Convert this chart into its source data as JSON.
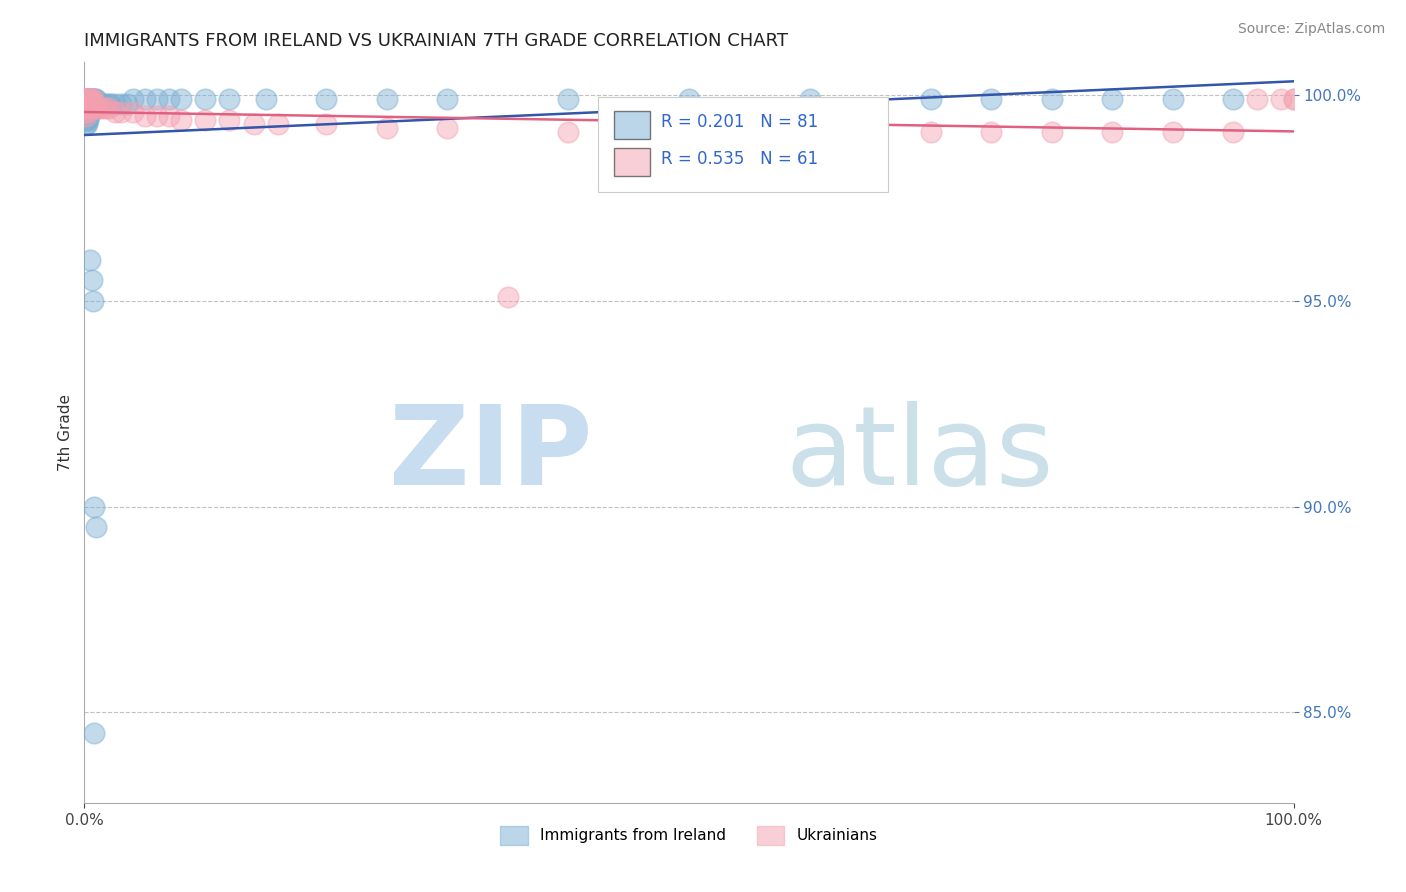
{
  "title": "IMMIGRANTS FROM IRELAND VS UKRAINIAN 7TH GRADE CORRELATION CHART",
  "source": "Source: ZipAtlas.com",
  "ylabel": "7th Grade",
  "xlim": [
    0.0,
    1.0
  ],
  "ylim": [
    0.828,
    1.008
  ],
  "yticks": [
    0.85,
    0.9,
    0.95,
    1.0
  ],
  "ytick_labels": [
    "85.0%",
    "90.0%",
    "95.0%",
    "100.0%"
  ],
  "blue_R": 0.201,
  "blue_N": 81,
  "pink_R": 0.535,
  "pink_N": 61,
  "blue_color": "#7BAFD4",
  "pink_color": "#F4A0B0",
  "blue_line_color": "#3355AA",
  "pink_line_color": "#E06080",
  "legend_label_blue": "Immigrants from Ireland",
  "legend_label_pink": "Ukrainians",
  "blue_x": [
    0.001,
    0.001,
    0.001,
    0.001,
    0.001,
    0.001,
    0.001,
    0.001,
    0.001,
    0.001,
    0.002,
    0.002,
    0.002,
    0.002,
    0.002,
    0.002,
    0.002,
    0.002,
    0.003,
    0.003,
    0.003,
    0.003,
    0.003,
    0.003,
    0.004,
    0.004,
    0.004,
    0.004,
    0.004,
    0.005,
    0.005,
    0.005,
    0.005,
    0.006,
    0.006,
    0.006,
    0.007,
    0.007,
    0.007,
    0.008,
    0.008,
    0.009,
    0.009,
    0.01,
    0.01,
    0.012,
    0.013,
    0.015,
    0.016,
    0.018,
    0.02,
    0.022,
    0.025,
    0.03,
    0.035,
    0.04,
    0.05,
    0.06,
    0.07,
    0.08,
    0.1,
    0.12,
    0.15,
    0.2,
    0.25,
    0.3,
    0.4,
    0.5,
    0.6,
    0.7,
    0.75,
    0.8,
    0.85,
    0.9,
    0.95,
    0.008,
    0.01,
    0.005,
    0.006,
    0.007,
    0.008
  ],
  "blue_y": [
    0.999,
    0.998,
    0.997,
    0.997,
    0.996,
    0.996,
    0.995,
    0.995,
    0.994,
    0.993,
    0.999,
    0.998,
    0.998,
    0.997,
    0.996,
    0.995,
    0.994,
    0.993,
    0.999,
    0.998,
    0.997,
    0.996,
    0.995,
    0.994,
    0.999,
    0.998,
    0.997,
    0.996,
    0.995,
    0.999,
    0.998,
    0.997,
    0.996,
    0.999,
    0.998,
    0.997,
    0.999,
    0.998,
    0.997,
    0.999,
    0.998,
    0.999,
    0.997,
    0.999,
    0.998,
    0.998,
    0.998,
    0.998,
    0.998,
    0.998,
    0.998,
    0.998,
    0.998,
    0.998,
    0.998,
    0.999,
    0.999,
    0.999,
    0.999,
    0.999,
    0.999,
    0.999,
    0.999,
    0.999,
    0.999,
    0.999,
    0.999,
    0.999,
    0.999,
    0.999,
    0.999,
    0.999,
    0.999,
    0.999,
    0.999,
    0.9,
    0.895,
    0.96,
    0.955,
    0.95,
    0.845
  ],
  "pink_x": [
    0.001,
    0.001,
    0.001,
    0.001,
    0.001,
    0.002,
    0.002,
    0.002,
    0.002,
    0.003,
    0.003,
    0.003,
    0.004,
    0.004,
    0.004,
    0.005,
    0.005,
    0.005,
    0.006,
    0.006,
    0.007,
    0.007,
    0.008,
    0.008,
    0.009,
    0.01,
    0.012,
    0.015,
    0.018,
    0.02,
    0.025,
    0.03,
    0.04,
    0.05,
    0.06,
    0.07,
    0.08,
    0.1,
    0.12,
    0.14,
    0.16,
    0.2,
    0.25,
    0.3,
    0.35,
    0.4,
    0.45,
    0.5,
    0.55,
    0.6,
    0.65,
    0.7,
    0.75,
    0.8,
    0.85,
    0.9,
    0.95,
    0.97,
    0.99,
    1.0,
    1.0
  ],
  "pink_y": [
    0.999,
    0.998,
    0.997,
    0.996,
    0.995,
    0.999,
    0.998,
    0.997,
    0.996,
    0.999,
    0.998,
    0.997,
    0.999,
    0.998,
    0.997,
    0.999,
    0.998,
    0.997,
    0.999,
    0.998,
    0.999,
    0.998,
    0.998,
    0.997,
    0.998,
    0.997,
    0.997,
    0.997,
    0.997,
    0.997,
    0.996,
    0.996,
    0.996,
    0.995,
    0.995,
    0.995,
    0.994,
    0.994,
    0.994,
    0.993,
    0.993,
    0.993,
    0.992,
    0.992,
    0.951,
    0.991,
    0.991,
    0.991,
    0.991,
    0.991,
    0.991,
    0.991,
    0.991,
    0.991,
    0.991,
    0.991,
    0.991,
    0.999,
    0.999,
    0.999,
    0.999
  ]
}
